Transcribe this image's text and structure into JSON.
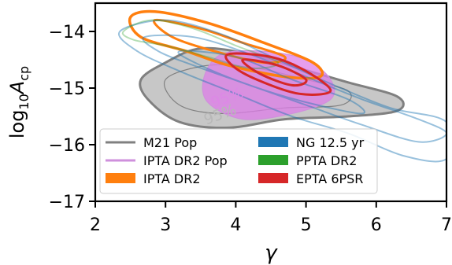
{
  "chart_data": {
    "type": "contour",
    "title": "",
    "xlabel": "γ",
    "ylabel": "log10 A_cp",
    "ylabel_main": "log",
    "ylabel_sub": "10",
    "ylabel_var": "A",
    "ylabel_varsub": "cp",
    "xlim": [
      2,
      7
    ],
    "ylim": [
      -17,
      -13.5
    ],
    "x_ticks": [
      2,
      3,
      4,
      5,
      6,
      7
    ],
    "y_ticks": [
      -17,
      -16,
      -15,
      -14
    ],
    "y_tick_labels": [
      "−17",
      "−16",
      "−15",
      "−14"
    ],
    "grid": false,
    "legend_position": "lower-left",
    "annotations": [
      {
        "text": "95%",
        "x": 3.9,
        "y": -15.25,
        "rotation": -20,
        "color": "#dd88e6"
      },
      {
        "text": "95%",
        "x": 3.8,
        "y": -15.55,
        "rotation": -20,
        "color": "#b8b8b8"
      }
    ],
    "series": [
      {
        "name": "M21 Pop",
        "legend_style": "line",
        "color": "#808080",
        "fill": "#bdbdbd",
        "fill_opacity": 0.85,
        "contours": [
          {
            "points": [
              [
                2.65,
                -14.85
              ],
              [
                3.0,
                -14.55
              ],
              [
                3.5,
                -14.3
              ],
              [
                4.2,
                -14.4
              ],
              [
                4.9,
                -14.65
              ],
              [
                5.6,
                -14.9
              ],
              [
                6.3,
                -15.15
              ],
              [
                6.3,
                -15.4
              ],
              [
                5.6,
                -15.5
              ],
              [
                4.7,
                -15.55
              ],
              [
                3.9,
                -15.7
              ],
              [
                3.2,
                -15.6
              ],
              [
                2.75,
                -15.2
              ]
            ],
            "filled": true,
            "stroke_width": 3
          },
          {
            "points": [
              [
                3.0,
                -14.85
              ],
              [
                3.6,
                -14.6
              ],
              [
                4.3,
                -14.65
              ],
              [
                5.0,
                -14.85
              ],
              [
                5.6,
                -15.05
              ],
              [
                5.5,
                -15.3
              ],
              [
                4.7,
                -15.35
              ],
              [
                3.8,
                -15.45
              ],
              [
                3.2,
                -15.3
              ]
            ],
            "filled": false,
            "stroke_width": 1.2
          }
        ]
      },
      {
        "name": "IPTA DR2 Pop",
        "legend_style": "line",
        "color": "#cf90dc",
        "fill": "#dd7ee8",
        "fill_opacity": 0.75,
        "contours": [
          {
            "points": [
              [
                3.55,
                -14.8
              ],
              [
                3.8,
                -14.4
              ],
              [
                4.4,
                -14.35
              ],
              [
                5.0,
                -14.5
              ],
              [
                5.35,
                -14.85
              ],
              [
                5.35,
                -15.2
              ],
              [
                4.8,
                -15.45
              ],
              [
                4.1,
                -15.55
              ],
              [
                3.6,
                -15.25
              ]
            ],
            "filled": true,
            "stroke_width": 1.2
          }
        ]
      },
      {
        "name": "IPTA DR2",
        "legend_style": "patch",
        "color": "#ff7f0e",
        "contours": [
          {
            "points": [
              [
                2.5,
                -13.75
              ],
              [
                2.85,
                -13.65
              ],
              [
                3.6,
                -13.85
              ],
              [
                4.4,
                -14.2
              ],
              [
                5.1,
                -14.55
              ],
              [
                5.2,
                -14.8
              ],
              [
                4.7,
                -14.8
              ],
              [
                3.9,
                -14.6
              ],
              [
                3.3,
                -14.35
              ],
              [
                2.65,
                -14.1
              ]
            ],
            "filled": false,
            "stroke_width": 3.5
          },
          {
            "points": [
              [
                2.85,
                -13.8
              ],
              [
                3.5,
                -13.95
              ],
              [
                4.1,
                -14.2
              ],
              [
                4.7,
                -14.45
              ],
              [
                4.4,
                -14.55
              ],
              [
                3.7,
                -14.35
              ],
              [
                3.1,
                -14.1
              ]
            ],
            "filled": false,
            "stroke_width": 3
          }
        ]
      },
      {
        "name": "NG 12.5 yr",
        "legend_style": "patch",
        "color": "#1f77b4",
        "opacity": 0.45,
        "contours": [
          {
            "points": [
              [
                2.35,
                -14.0
              ],
              [
                3.0,
                -13.8
              ],
              [
                3.8,
                -14.05
              ],
              [
                4.6,
                -14.5
              ],
              [
                5.4,
                -14.95
              ],
              [
                6.2,
                -15.35
              ],
              [
                7.0,
                -15.6
              ],
              [
                7.0,
                -16.25
              ],
              [
                6.4,
                -16.2
              ],
              [
                5.6,
                -15.8
              ],
              [
                4.8,
                -15.5
              ],
              [
                4.0,
                -15.1
              ],
              [
                3.2,
                -14.7
              ],
              [
                2.6,
                -14.35
              ]
            ],
            "filled": false,
            "stroke_width": 2
          },
          {
            "points": [
              [
                2.7,
                -14.1
              ],
              [
                3.4,
                -14.1
              ],
              [
                4.2,
                -14.4
              ],
              [
                5.0,
                -14.8
              ],
              [
                5.8,
                -15.2
              ],
              [
                6.6,
                -15.55
              ],
              [
                7.0,
                -15.8
              ],
              [
                6.6,
                -15.95
              ],
              [
                5.8,
                -15.65
              ],
              [
                5.0,
                -15.3
              ],
              [
                4.2,
                -14.95
              ],
              [
                3.4,
                -14.6
              ],
              [
                2.9,
                -14.35
              ]
            ],
            "filled": false,
            "stroke_width": 2
          },
          {
            "points": [
              [
                3.2,
                -14.35
              ],
              [
                4.0,
                -14.45
              ],
              [
                4.8,
                -14.85
              ],
              [
                5.6,
                -15.2
              ],
              [
                5.8,
                -15.45
              ],
              [
                5.0,
                -15.25
              ],
              [
                4.2,
                -14.95
              ],
              [
                3.5,
                -14.6
              ]
            ],
            "filled": false,
            "stroke_width": 2
          }
        ]
      },
      {
        "name": "PPTA DR2",
        "legend_style": "patch",
        "color": "#2ca02c",
        "opacity": 0.35,
        "contours": [
          {
            "points": [
              [
                2.4,
                -14.0
              ],
              [
                2.8,
                -13.8
              ],
              [
                3.4,
                -13.95
              ],
              [
                4.0,
                -14.25
              ],
              [
                4.6,
                -14.55
              ],
              [
                4.2,
                -14.65
              ],
              [
                3.6,
                -14.45
              ],
              [
                3.0,
                -14.25
              ],
              [
                2.55,
                -14.15
              ]
            ],
            "filled": false,
            "stroke_width": 2
          }
        ]
      },
      {
        "name": "EPTA 6PSR",
        "legend_style": "patch",
        "color": "#d62728",
        "contours": [
          {
            "points": [
              [
                3.9,
                -14.4
              ],
              [
                4.5,
                -14.45
              ],
              [
                5.0,
                -14.7
              ],
              [
                5.35,
                -15.05
              ],
              [
                4.9,
                -15.1
              ],
              [
                4.3,
                -14.85
              ],
              [
                3.95,
                -14.6
              ]
            ],
            "filled": false,
            "stroke_width": 3
          },
          {
            "points": [
              [
                4.1,
                -14.5
              ],
              [
                4.6,
                -14.6
              ],
              [
                5.0,
                -14.85
              ],
              [
                4.8,
                -14.95
              ],
              [
                4.35,
                -14.75
              ]
            ],
            "filled": false,
            "stroke_width": 3
          }
        ]
      }
    ]
  }
}
